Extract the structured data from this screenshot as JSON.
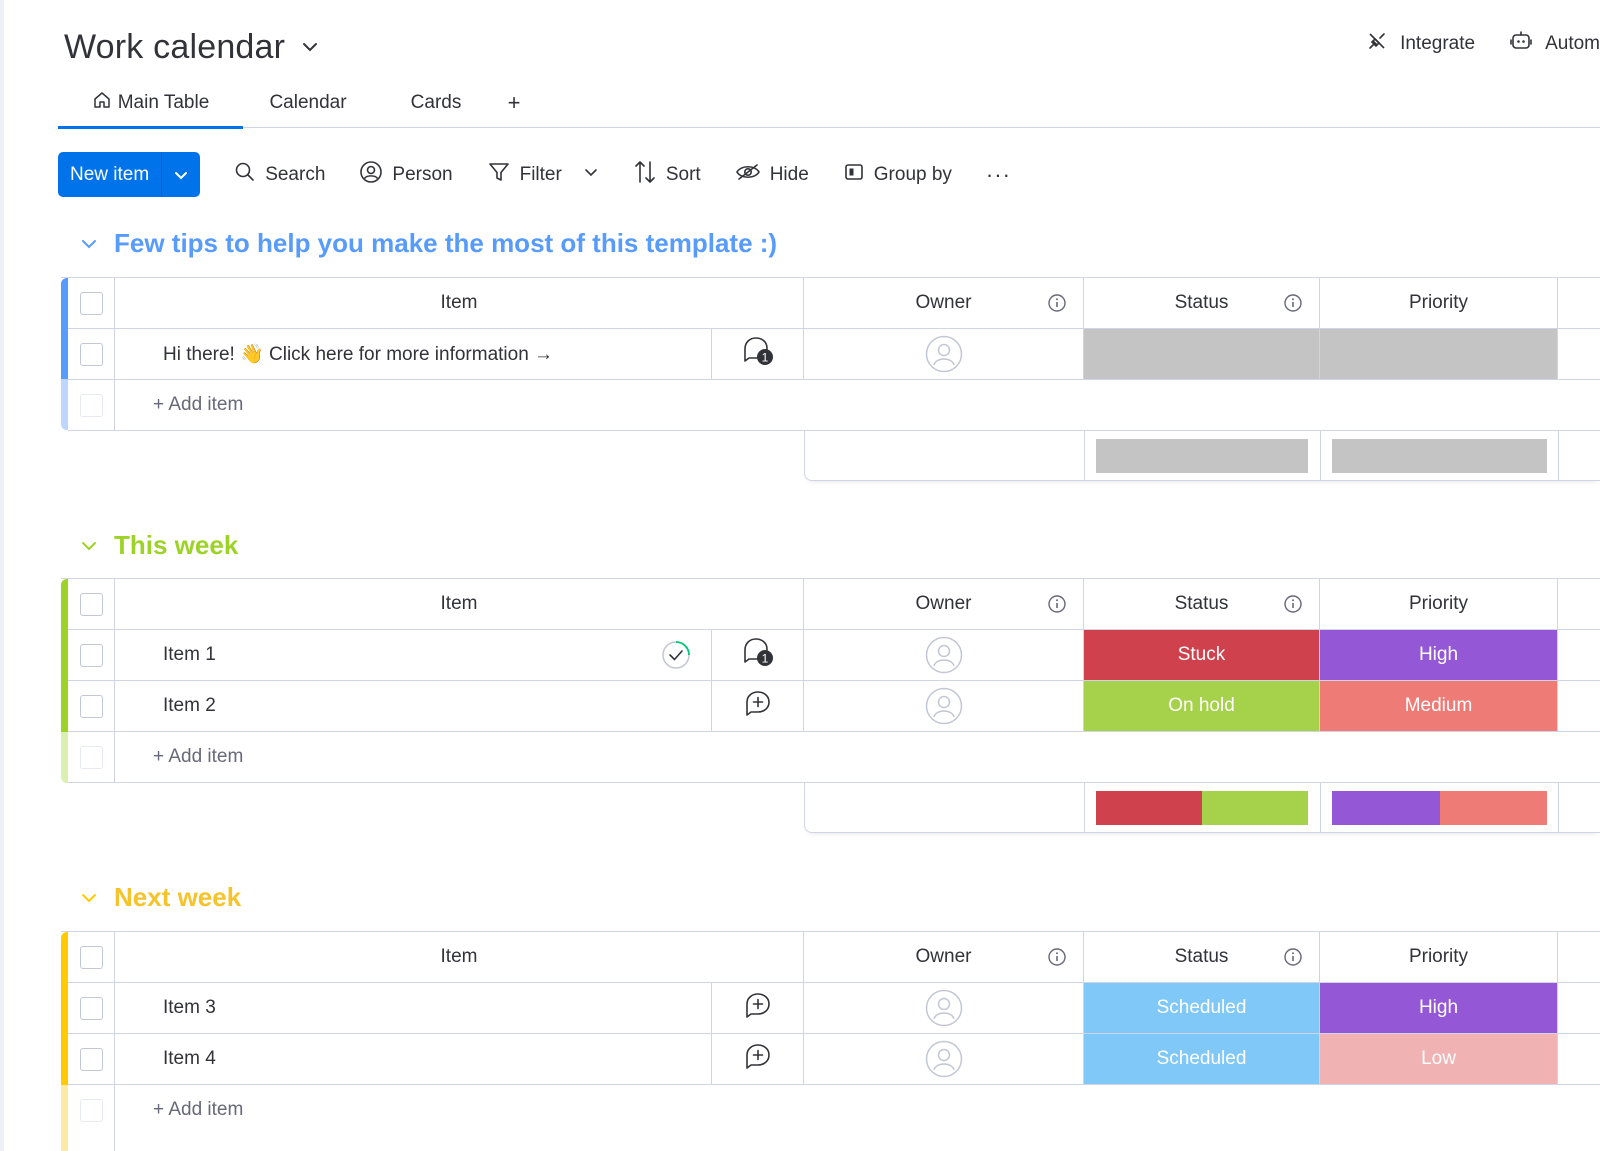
{
  "board": {
    "title": "Work calendar"
  },
  "top_actions": {
    "integrate": "Integrate",
    "automate": "Autom"
  },
  "tabs": [
    {
      "label": "Main Table",
      "active": true,
      "icon": "home-icon"
    },
    {
      "label": "Calendar"
    },
    {
      "label": "Cards"
    },
    {
      "label": "+"
    }
  ],
  "toolbar": {
    "new_item": "New item",
    "search": "Search",
    "person": "Person",
    "filter": "Filter",
    "sort": "Sort",
    "hide": "Hide",
    "group_by": "Group by",
    "more": "···"
  },
  "columns": {
    "item": "Item",
    "owner": "Owner",
    "status": "Status",
    "priority": "Priority"
  },
  "add_item_label": "+ Add item",
  "colors": {
    "accent": "#0073ea",
    "stuck": "#d0414e",
    "on_hold": "#a5d14b",
    "scheduled": "#80c8f8",
    "high": "#9457d6",
    "medium": "#ee7b76",
    "low": "#f0b2b2",
    "empty": "#c4c4c4"
  },
  "groups": [
    {
      "title": "Few tips to help you make the most of this template :)",
      "color": "#579bfc",
      "rows": [
        {
          "name": "Hi there! 👋 Click here for more information →",
          "updates": "1",
          "status": "",
          "priority": ""
        }
      ]
    },
    {
      "title": "This week",
      "color": "#9cd326",
      "rows": [
        {
          "name": "Item 1",
          "updates": "1",
          "status": "Stuck",
          "priority": "High"
        },
        {
          "name": "Item 2",
          "updates": "",
          "status": "On hold",
          "priority": "Medium"
        }
      ]
    },
    {
      "title": "Next week",
      "color": "#ffcb00",
      "rows": [
        {
          "name": "Item 3",
          "updates": "",
          "status": "Scheduled",
          "priority": "High"
        },
        {
          "name": "Item 4",
          "updates": "",
          "status": "Scheduled",
          "priority": "Low"
        }
      ]
    }
  ]
}
